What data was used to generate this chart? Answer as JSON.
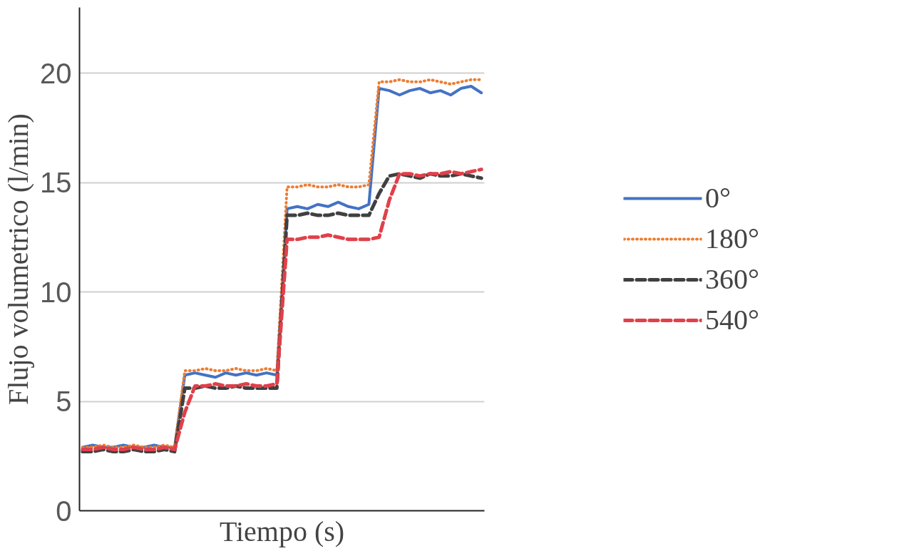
{
  "chart_data": {
    "type": "line",
    "xlabel": "Tiempo (s)",
    "ylabel": "Flujo volumetrico (l/min)",
    "categories": [
      null,
      null,
      null,
      null,
      null,
      null,
      null,
      null,
      null,
      null,
      null,
      null,
      null,
      null,
      null,
      null,
      null,
      null,
      null,
      null,
      null,
      null,
      null,
      null,
      null,
      null,
      null,
      null,
      null,
      null,
      null,
      null,
      null,
      null,
      null,
      null,
      null,
      null,
      null,
      null
    ],
    "ylim": [
      0,
      23
    ],
    "yticks": [
      0,
      5,
      10,
      15,
      20
    ],
    "grid": "y",
    "legend": "right",
    "tick_labels": "y",
    "series": [
      {
        "name": "0°",
        "color": "#4472c4",
        "line_style": "solid",
        "values": [
          2.9,
          3.0,
          2.9,
          2.9,
          3.0,
          2.9,
          2.9,
          3.0,
          2.9,
          2.9,
          6.2,
          6.3,
          6.2,
          6.1,
          6.3,
          6.2,
          6.3,
          6.2,
          6.3,
          6.2,
          13.8,
          13.9,
          13.8,
          14.0,
          13.9,
          14.1,
          13.9,
          13.8,
          14.0,
          19.3,
          19.2,
          19.0,
          19.2,
          19.3,
          19.1,
          19.2,
          19.0,
          19.3,
          19.4,
          19.1
        ]
      },
      {
        "name": "180°",
        "color": "#ed7d31",
        "line_style": "dotted",
        "values": [
          2.9,
          2.9,
          3.0,
          2.9,
          2.9,
          3.0,
          2.9,
          2.9,
          3.0,
          2.9,
          6.4,
          6.4,
          6.5,
          6.4,
          6.4,
          6.5,
          6.4,
          6.4,
          6.5,
          6.4,
          14.8,
          14.8,
          14.9,
          14.8,
          14.8,
          14.9,
          14.8,
          14.8,
          14.9,
          19.6,
          19.6,
          19.7,
          19.6,
          19.6,
          19.7,
          19.6,
          19.5,
          19.6,
          19.7,
          19.7
        ]
      },
      {
        "name": "360°",
        "color": "#404040",
        "line_style": "dashed",
        "values": [
          2.7,
          2.7,
          2.8,
          2.7,
          2.7,
          2.8,
          2.7,
          2.7,
          2.8,
          2.7,
          5.6,
          5.6,
          5.7,
          5.6,
          5.6,
          5.7,
          5.6,
          5.6,
          5.6,
          5.6,
          13.5,
          13.5,
          13.6,
          13.5,
          13.5,
          13.6,
          13.5,
          13.5,
          13.5,
          14.5,
          15.3,
          15.4,
          15.3,
          15.2,
          15.4,
          15.3,
          15.3,
          15.4,
          15.3,
          15.2
        ]
      },
      {
        "name": "540°",
        "color": "#e0404a",
        "line_style": "dashed",
        "values": [
          2.8,
          2.8,
          2.9,
          2.8,
          2.8,
          2.9,
          2.8,
          2.8,
          2.9,
          2.8,
          4.5,
          5.7,
          5.7,
          5.8,
          5.7,
          5.7,
          5.8,
          5.7,
          5.7,
          5.8,
          12.4,
          12.4,
          12.5,
          12.5,
          12.6,
          12.5,
          12.4,
          12.4,
          12.4,
          12.5,
          14.2,
          15.4,
          15.4,
          15.3,
          15.4,
          15.4,
          15.5,
          15.4,
          15.5,
          15.6
        ]
      }
    ]
  }
}
